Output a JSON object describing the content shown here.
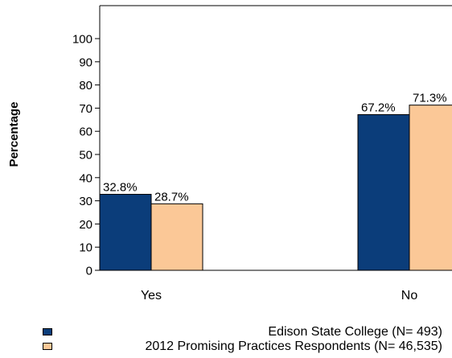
{
  "chart_data": {
    "type": "bar",
    "ylabel": "Percentage",
    "xlabel": "",
    "title": "",
    "categories": [
      "Yes",
      "No"
    ],
    "ylim": [
      0,
      100
    ],
    "yticks": [
      0,
      10,
      20,
      30,
      40,
      50,
      60,
      70,
      80,
      90,
      100
    ],
    "grid": false,
    "legend_position": "bottom",
    "series": [
      {
        "name": "Edison State College  (N= 493)",
        "values": [
          32.8,
          67.2
        ],
        "labels": [
          "32.8%",
          "67.2%"
        ],
        "color": "#0b3d7a"
      },
      {
        "name": "2012 Promising Practices Respondents (N= 46,535)",
        "values": [
          28.7,
          71.3
        ],
        "labels": [
          "28.7%",
          "71.3%"
        ],
        "color": "#fbc897"
      }
    ]
  }
}
